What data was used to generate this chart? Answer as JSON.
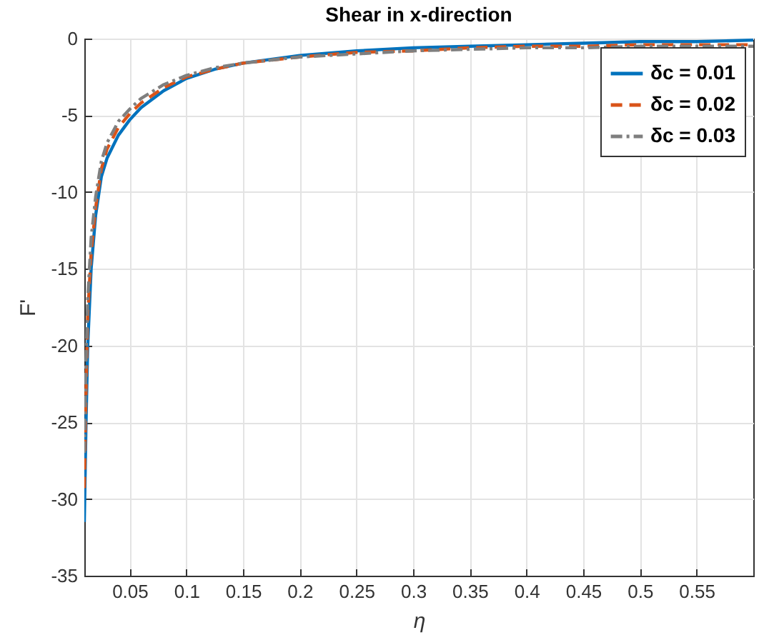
{
  "chart_data": {
    "type": "line",
    "title": "Shear in x-direction",
    "xlabel": "η",
    "ylabel": "F'",
    "x": [
      0.01,
      0.0115,
      0.013,
      0.016,
      0.02,
      0.025,
      0.03,
      0.04,
      0.05,
      0.06,
      0.08,
      0.1,
      0.125,
      0.15,
      0.2,
      0.25,
      0.3,
      0.35,
      0.4,
      0.45,
      0.5,
      0.55,
      0.6
    ],
    "series": [
      {
        "name": "δc = 0.01",
        "color": "#0072bd",
        "line_style": "solid",
        "values": [
          -31.5,
          -25,
          -20,
          -15,
          -11.5,
          -9,
          -7.8,
          -6.3,
          -5.3,
          -4.5,
          -3.4,
          -2.6,
          -2.0,
          -1.6,
          -1.1,
          -0.8,
          -0.6,
          -0.5,
          -0.4,
          -0.3,
          -0.2,
          -0.2,
          -0.1
        ]
      },
      {
        "name": "δc = 0.02",
        "color": "#d95319",
        "line_style": "dashed",
        "values": [
          -29.3,
          -23,
          -18,
          -14,
          -11,
          -8.5,
          -7.2,
          -5.8,
          -4.9,
          -4.2,
          -3.2,
          -2.5,
          -2.0,
          -1.6,
          -1.2,
          -0.9,
          -0.8,
          -0.6,
          -0.5,
          -0.5,
          -0.4,
          -0.4,
          -0.4
        ]
      },
      {
        "name": "δc = 0.03",
        "color": "#7f7f7f",
        "line_style": "dotted",
        "values": [
          -27,
          -21,
          -17,
          -13,
          -10.3,
          -8,
          -6.8,
          -5.4,
          -4.6,
          -3.9,
          -3.0,
          -2.4,
          -1.9,
          -1.6,
          -1.2,
          -1.0,
          -0.8,
          -0.7,
          -0.6,
          -0.6,
          -0.5,
          -0.5,
          -0.5
        ]
      }
    ],
    "xlim": [
      0.01,
      0.6
    ],
    "ylim": [
      -35,
      0
    ],
    "xticks": [
      0.05,
      0.1,
      0.15,
      0.2,
      0.25,
      0.3,
      0.35,
      0.4,
      0.45,
      0.5,
      0.55
    ],
    "yticks": [
      -35,
      -30,
      -25,
      -20,
      -15,
      -10,
      -5,
      0
    ],
    "grid": true,
    "legend": "top right",
    "marker": "none"
  }
}
